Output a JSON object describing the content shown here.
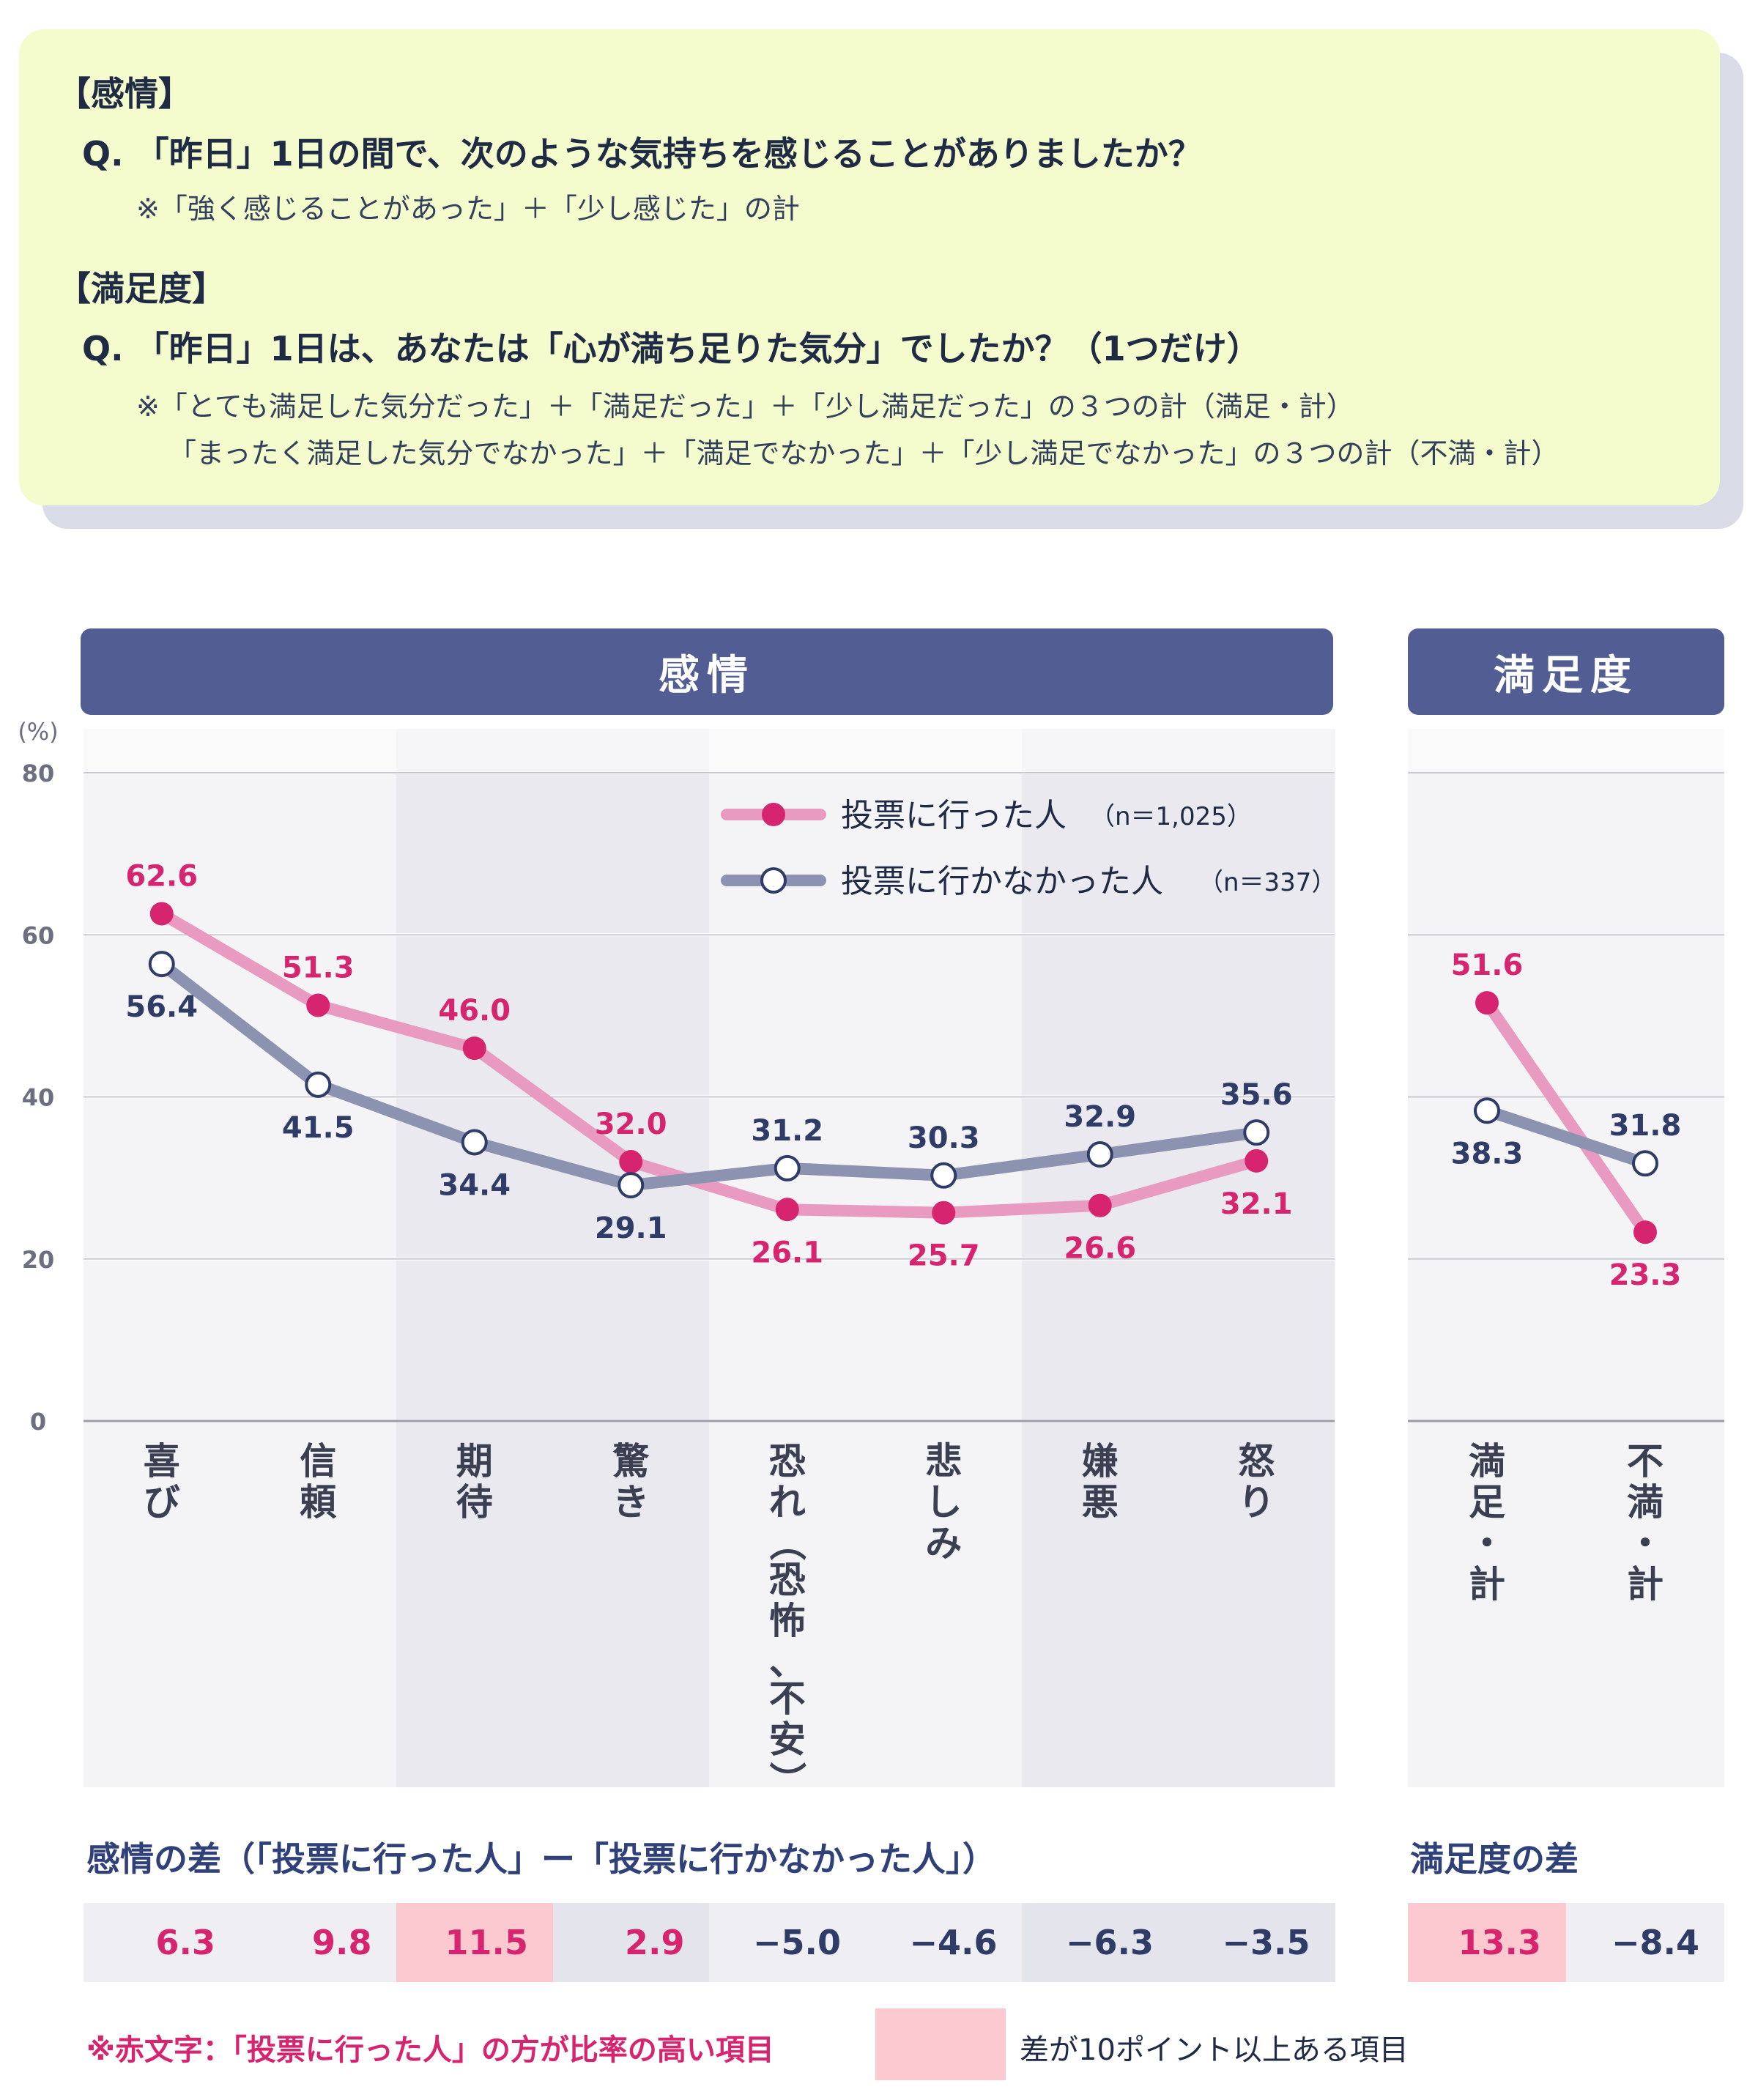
{
  "question_box": {
    "emotion_heading": "【感情】",
    "emotion_question": "Q. 「昨日」1日の間で、次のような気持ちを感じることがありましたか？",
    "emotion_note": "※「強く感じることがあった」＋「少し感じた」の計",
    "satisfaction_heading": "【満足度】",
    "satisfaction_question": "Q. 「昨日」1日は、あなたは「心が満ち足りた気分」でしたか？（1つだけ）",
    "satisfaction_note_1": "※「とても満足した気分だった」＋「満足だった」＋「少し満足だった」の３つの計（満足・計）",
    "satisfaction_note_2": "「まったく満足した気分でなかった」＋「満足でなかった」＋「少し満足でなかった」の３つの計（不満・計）"
  },
  "headers": {
    "emotion": "感情",
    "satisfaction": "満足度"
  },
  "colors": {
    "voted": "#d6246e",
    "voted_line": "#e99ac1",
    "not_voted": "#2f3c68",
    "not_voted_line": "#8c93b0",
    "header_bg": "#525e93",
    "highlight": "#fbc9cf"
  },
  "chart_data": [
    {
      "type": "line",
      "unit_label": "(%)",
      "ylim": [
        0,
        80
      ],
      "yticks": [
        0,
        20,
        40,
        60,
        80
      ],
      "grid": true,
      "legend_position": "top-right",
      "categories": [
        "喜び",
        "信頼",
        "期待",
        "驚き",
        "恐れ（恐怖、不安）",
        "悲しみ",
        "嫌悪",
        "怒り"
      ],
      "series": [
        {
          "name": "投票に行った人",
          "n_label": "（n＝1,025）",
          "values": [
            62.6,
            51.3,
            46.0,
            32.0,
            26.1,
            25.7,
            26.6,
            32.1
          ]
        },
        {
          "name": "投票に行かなかった人",
          "n_label": "（n＝337）",
          "values": [
            56.4,
            41.5,
            34.4,
            29.1,
            31.2,
            30.3,
            32.9,
            35.6
          ]
        }
      ],
      "value_labels": {
        "voted": [
          "62.6",
          "51.3",
          "46.0",
          "32.0",
          "26.1",
          "25.7",
          "26.6",
          "32.1"
        ],
        "not_voted": [
          "56.4",
          "41.5",
          "34.4",
          "29.1",
          "31.2",
          "30.3",
          "32.9",
          "35.6"
        ]
      }
    },
    {
      "type": "line",
      "ylim": [
        0,
        80
      ],
      "categories": [
        "満足・計",
        "不満・計"
      ],
      "series": [
        {
          "name": "投票に行った人",
          "values": [
            51.6,
            23.3
          ]
        },
        {
          "name": "投票に行かなかった人",
          "values": [
            38.3,
            31.8
          ]
        }
      ],
      "value_labels": {
        "voted": [
          "51.6",
          "23.3"
        ],
        "not_voted": [
          "38.3",
          "31.8"
        ]
      }
    }
  ],
  "differences": {
    "emotion_title": "感情の差（「投票に行った人」ー「投票に行かなかった人」）",
    "satisfaction_title": "満足度の差",
    "emotion_values": [
      "6.3",
      "9.8",
      "11.5",
      "2.9",
      "−5.0",
      "−4.6",
      "−6.3",
      "−3.5"
    ],
    "emotion_positive": [
      true,
      true,
      true,
      true,
      false,
      false,
      false,
      false
    ],
    "emotion_highlight": [
      false,
      false,
      true,
      false,
      false,
      false,
      false,
      false
    ],
    "satisfaction_values": [
      "13.3",
      "−8.4"
    ],
    "satisfaction_positive": [
      true,
      false
    ],
    "satisfaction_highlight": [
      true,
      false
    ]
  },
  "footnote": {
    "red_text_note": "※赤文字：「投票に行った人」の方が比率の高い項目",
    "highlight_legend": "差が10ポイント以上ある項目"
  }
}
